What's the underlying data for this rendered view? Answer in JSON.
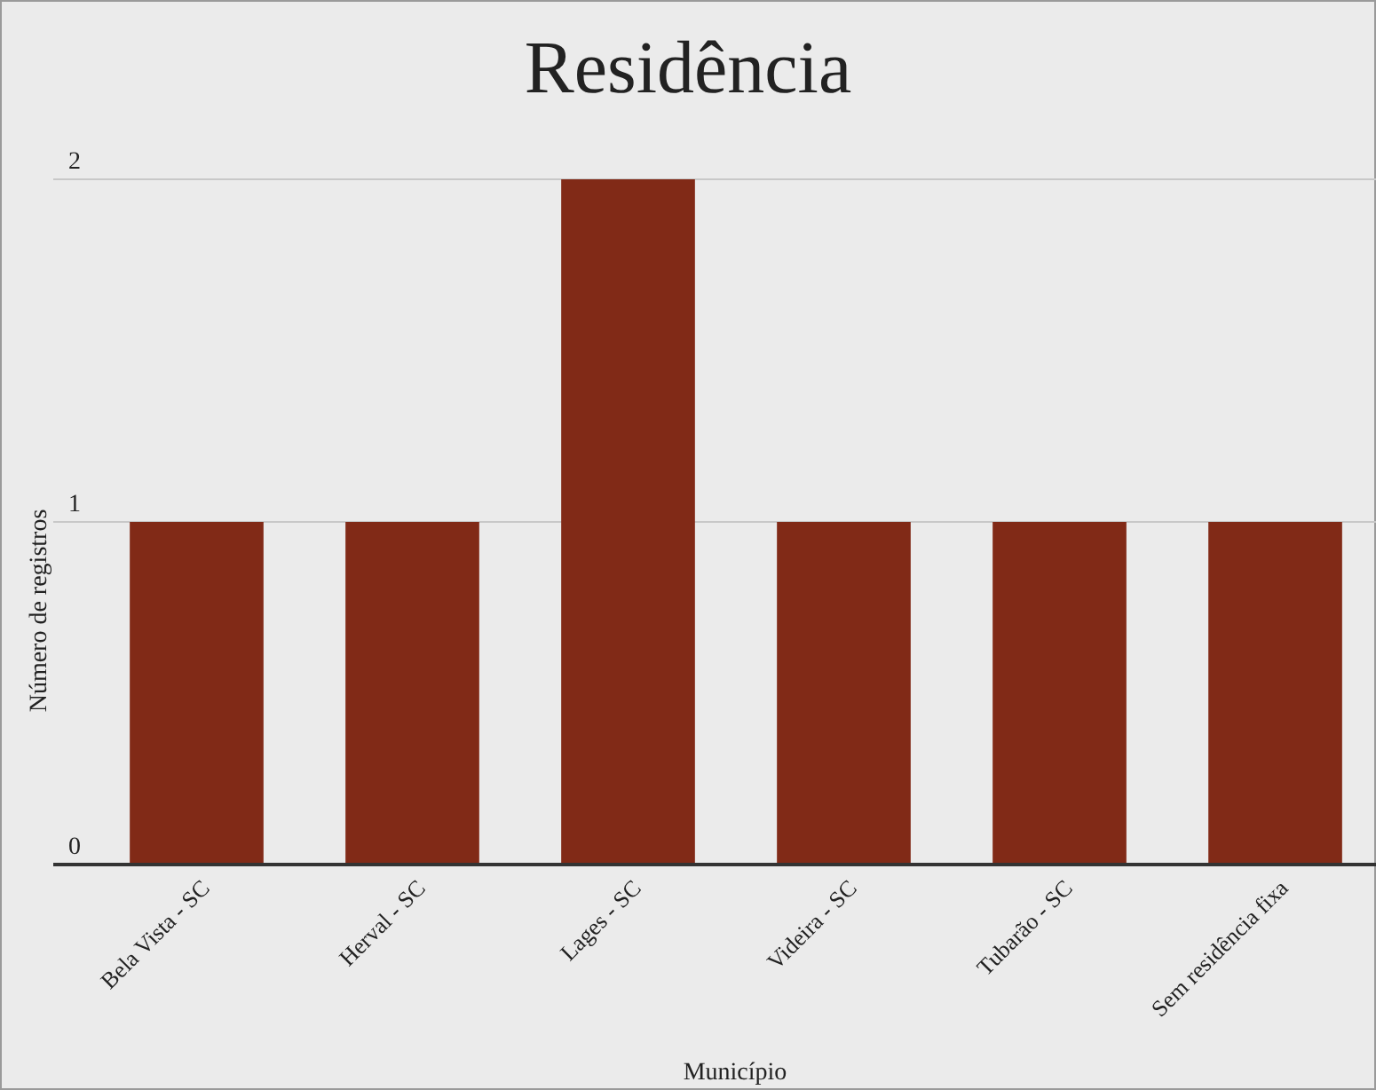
{
  "chart_data": {
    "type": "bar",
    "title": "Residência",
    "xlabel": "Município",
    "ylabel": "Número de registros",
    "categories": [
      "Bela Vista - SC",
      "Herval - SC",
      "Lages - SC",
      "Videira - SC",
      "Tubarão - SC",
      "Sem residência fixa"
    ],
    "values": [
      1,
      1,
      2,
      1,
      1,
      1
    ],
    "color": "#812a17",
    "ylim": [
      0,
      2
    ],
    "yticks": [
      0,
      1,
      2
    ],
    "grid": "y"
  }
}
